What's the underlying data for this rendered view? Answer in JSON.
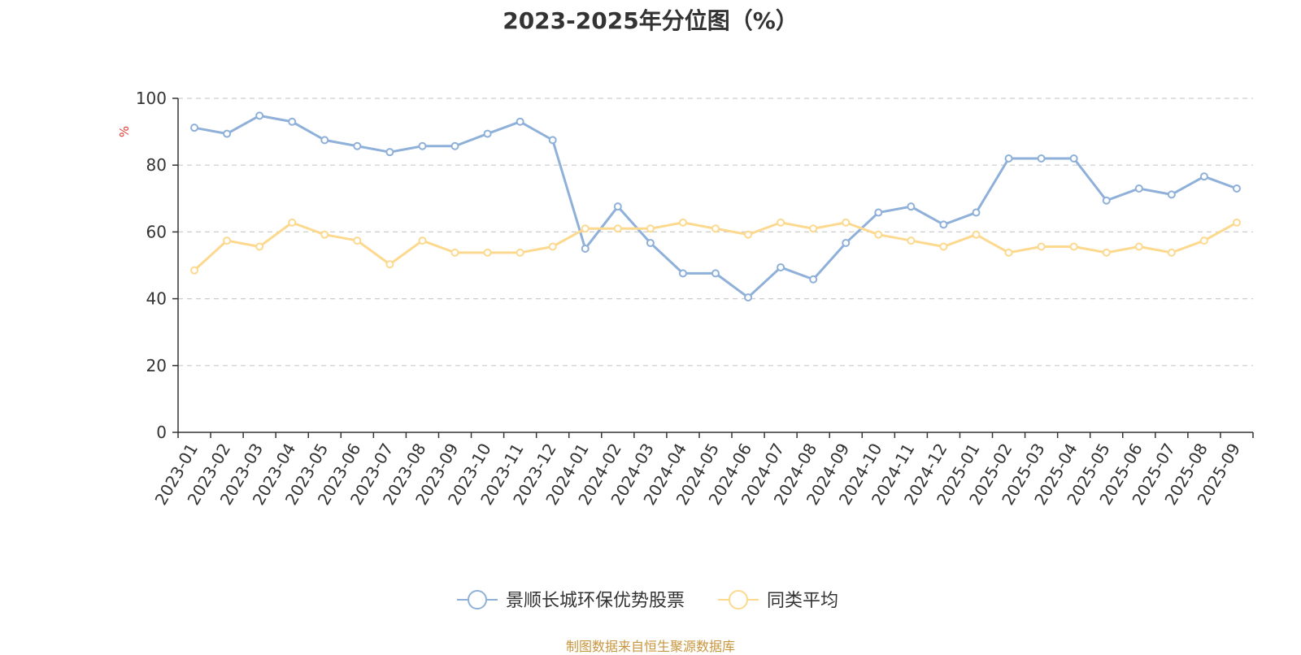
{
  "title": "2023-2025年分位图（%）",
  "footer": "制图数据来自恒生聚源数据库",
  "chart_data": {
    "type": "line",
    "title": "2023-2025年分位图（%）",
    "ylabel": "%",
    "ylim": [
      0,
      100
    ],
    "yticks": [
      0,
      20,
      40,
      60,
      80,
      100
    ],
    "grid": true,
    "legend_position": "bottom",
    "categories": [
      "2023-01",
      "2023-02",
      "2023-03",
      "2023-04",
      "2023-05",
      "2023-06",
      "2023-07",
      "2023-08",
      "2023-09",
      "2023-10",
      "2023-11",
      "2023-12",
      "2024-01",
      "2024-02",
      "2024-03",
      "2024-04",
      "2024-05",
      "2024-06",
      "2024-07",
      "2024-08",
      "2024-09",
      "2024-10",
      "2024-11",
      "2024-12",
      "2025-01",
      "2025-02",
      "2025-03",
      "2025-04",
      "2025-05",
      "2025-06",
      "2025-07",
      "2025-08",
      "2025-09"
    ],
    "series": [
      {
        "name": "景顺长城环保优势股票",
        "color": "#8eb0d9",
        "values": [
          91.2,
          89.4,
          94.8,
          93.0,
          87.5,
          85.7,
          83.9,
          85.7,
          85.7,
          89.4,
          93.0,
          87.5,
          55.0,
          67.6,
          56.7,
          47.6,
          47.6,
          40.4,
          49.4,
          45.8,
          56.7,
          65.8,
          67.6,
          62.2,
          65.8,
          82.0,
          82.0,
          82.0,
          69.4,
          73.0,
          71.2,
          76.6,
          73.0
        ]
      },
      {
        "name": "同类平均",
        "color": "#fcd98e",
        "values": [
          48.5,
          57.4,
          55.6,
          62.8,
          59.2,
          57.4,
          50.3,
          57.4,
          53.8,
          53.8,
          53.8,
          55.6,
          61.0,
          61.0,
          61.0,
          62.8,
          61.0,
          59.2,
          62.8,
          61.0,
          62.8,
          59.2,
          57.4,
          55.6,
          59.2,
          53.8,
          55.6,
          55.6,
          53.8,
          55.6,
          53.8,
          57.4,
          62.8
        ]
      }
    ]
  }
}
